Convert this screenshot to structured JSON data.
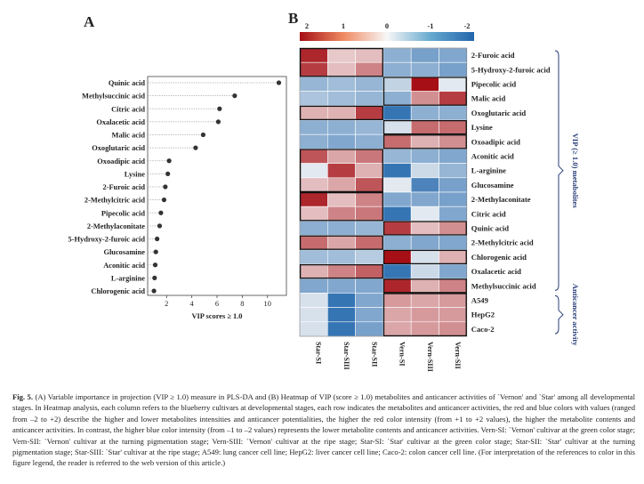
{
  "chart_data": [
    {
      "type": "scatter",
      "panel": "A",
      "xlabel": "VIP scores ≥ 1.0",
      "xlim": [
        0.5,
        11.5
      ],
      "xticks": [
        2,
        4,
        6,
        8,
        10
      ],
      "categories": [
        "Quinic acid",
        "Methylsuccinic acid",
        "Citric acid",
        "Oxalacetic acid",
        "Malic acid",
        "Oxoglutaric acid",
        "Oxoadipic acid",
        "Lysine",
        "2-Furoic acid",
        "2-Methylcitric acid",
        "Pipecolic acid",
        "2-Methylaconitate",
        "5-Hydroxy-2-furoic acid",
        "Glucosamine",
        "Aconitic acid",
        "L-arginine",
        "Chlorogenic acid"
      ],
      "values": [
        10.9,
        7.4,
        6.2,
        6.1,
        4.9,
        4.3,
        2.2,
        2.1,
        1.9,
        1.8,
        1.55,
        1.45,
        1.25,
        1.15,
        1.1,
        1.05,
        1.0
      ],
      "grid": false
    },
    {
      "type": "heatmap",
      "panel": "B",
      "columns": [
        "Star-SI",
        "Star-SIII",
        "Star-SII",
        "Vern-SI",
        "Vern-SIII",
        "Vern-SII"
      ],
      "rows": [
        "2-Furoic acid",
        "5-Hydroxy-2-furoic acid",
        "Pipecolic acid",
        "Malic acid",
        "Oxoglutaric acid",
        "Lysine",
        "Oxoadipic acid",
        "Aconitic acid",
        "L-arginine",
        "Glucosamine",
        "2-Methylaconitate",
        "Citric acid",
        "Quinic acid",
        "2-Methylcitric acid",
        "Chlorogenic acid",
        "Oxalacetic acid",
        "Methylsuccinic acid",
        "A549",
        "HepG2",
        "Caco-2"
      ],
      "values": [
        [
          1.8,
          0.4,
          0.5,
          -1.0,
          -1.2,
          -1.1
        ],
        [
          1.6,
          0.5,
          1.0,
          -1.0,
          -1.0,
          -1.2
        ],
        [
          -0.9,
          -0.8,
          -0.9,
          -0.5,
          2.0,
          -0.2
        ],
        [
          -0.7,
          -0.8,
          -0.9,
          -1.0,
          0.9,
          1.6
        ],
        [
          0.6,
          0.6,
          1.6,
          -1.8,
          -1.0,
          -1.0
        ],
        [
          -1.0,
          -1.0,
          -0.9,
          -0.3,
          1.2,
          1.2
        ],
        [
          -1.0,
          -1.1,
          -1.0,
          1.2,
          0.6,
          0.9
        ],
        [
          1.4,
          0.7,
          1.1,
          -0.9,
          -1.0,
          -1.1
        ],
        [
          -0.2,
          1.6,
          0.6,
          -1.8,
          -0.4,
          -0.9
        ],
        [
          0.5,
          0.7,
          1.4,
          -0.2,
          -1.6,
          -1.2
        ],
        [
          1.8,
          0.5,
          1.0,
          -1.1,
          -1.1,
          -1.2
        ],
        [
          0.5,
          1.0,
          1.1,
          -1.8,
          -0.2,
          -1.1
        ],
        [
          -1.0,
          -1.0,
          -0.9,
          1.6,
          0.5,
          0.9
        ],
        [
          1.2,
          0.7,
          1.2,
          -1.0,
          -1.1,
          -1.1
        ],
        [
          -0.8,
          -0.8,
          -0.6,
          2.0,
          -0.3,
          0.6
        ],
        [
          0.6,
          1.0,
          1.3,
          -1.8,
          -0.4,
          -1.1
        ],
        [
          -1.1,
          -1.1,
          -1.1,
          1.8,
          0.6,
          1.0
        ],
        [
          -0.3,
          -1.8,
          -1.1,
          0.8,
          0.7,
          0.8
        ],
        [
          -0.3,
          -1.8,
          -1.1,
          0.7,
          0.8,
          0.8
        ],
        [
          -0.3,
          -1.8,
          -1.2,
          0.7,
          0.8,
          0.9
        ]
      ],
      "highlight_boxes": [
        {
          "rows": [
            0,
            1
          ],
          "cols": [
            0,
            2
          ]
        },
        {
          "rows": [
            2,
            3
          ],
          "cols": [
            3,
            5
          ]
        },
        {
          "rows": [
            4,
            4
          ],
          "cols": [
            0,
            2
          ]
        },
        {
          "rows": [
            5,
            5
          ],
          "cols": [
            3,
            5
          ]
        },
        {
          "rows": [
            6,
            6
          ],
          "cols": [
            3,
            5
          ]
        },
        {
          "rows": [
            7,
            9
          ],
          "cols": [
            0,
            2
          ]
        },
        {
          "rows": [
            10,
            11
          ],
          "cols": [
            0,
            2
          ]
        },
        {
          "rows": [
            12,
            12
          ],
          "cols": [
            3,
            5
          ]
        },
        {
          "rows": [
            13,
            13
          ],
          "cols": [
            0,
            2
          ]
        },
        {
          "rows": [
            14,
            14
          ],
          "cols": [
            3,
            5
          ]
        },
        {
          "rows": [
            15,
            15
          ],
          "cols": [
            0,
            2
          ]
        },
        {
          "rows": [
            16,
            16
          ],
          "cols": [
            3,
            5
          ]
        },
        {
          "rows": [
            17,
            19
          ],
          "cols": [
            3,
            5
          ]
        }
      ],
      "groups": [
        {
          "label": "VIP (≥ 1.0) metabolites",
          "rows": [
            0,
            16
          ]
        },
        {
          "label": "Anticancer activity",
          "rows": [
            17,
            19
          ]
        }
      ],
      "legend": {
        "ticks": [
          2,
          1,
          0,
          -1,
          -2
        ],
        "tick_labels": [
          "2",
          "1",
          "0",
          "-1",
          "-2"
        ],
        "range": [
          2,
          -2
        ],
        "placement": "top"
      },
      "colors": {
        "high": "#a50f15",
        "mid": "#f7f7f7",
        "low": "#2166ac"
      }
    }
  ],
  "figure": {
    "panel_a_letter": "A",
    "panel_b_letter": "B"
  },
  "caption": {
    "label": "Fig. 5.",
    "text": " (A) Variable importance in projection (VIP ≥ 1.0) measure in PLS-DA and (B) Heatmap of VIP (score ≥ 1.0) metabolites and anticancer activities of `Vernon' and `Star' among all developmental stages. In Heatmap analysis, each column refers to the blueberry cultivars at developmental stages, each row indicates the metabolites and anticancer activities, the red and blue colors with values (ranged from –2 to +2) describe the higher and lower metabolites intensities and anticancer potentialities, the higher the red color intensity (from +1 to +2 values), the higher the metabolite contents and anticancer activities. In contrast, the higher blue color intensity (from –1 to –2 values) represents the lower metabolite contents and anticancer activities. Vern-SI: `Vernon' cultivar at the green color stage; Vern-SII: `Vernon' cultivar at the turning pigmentation stage; Vern-SIII: `Vernon' cultivar at the ripe stage; Star-SI: `Star' cultivar at the green color stage; Star-SII: `Star' cultivar at the turning pigmentation stage; Star-SIII: `Star' cultivar at the ripe stage; A549: lung cancer cell line; HepG2: liver cancer cell line; Caco-2: colon cancer cell line. (For interpretation of the references to color in this figure legend, the reader is referred to the web version of this article.)"
  }
}
